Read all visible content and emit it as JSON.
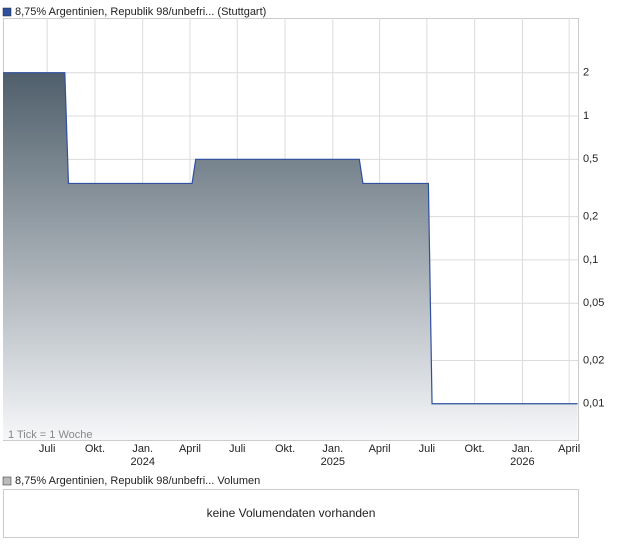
{
  "chart_data": {
    "type": "area",
    "title": "8,75% Argentinien, Republik 98/unbefri... (Stuttgart)",
    "note": "1 Tick = 1 Woche",
    "x": [
      "2023-04-07",
      "2023-08-04",
      "2023-08-11",
      "2024-04-05",
      "2024-04-12",
      "2025-02-21",
      "2025-02-28",
      "2025-07-04",
      "2025-07-11",
      "2026-04-17"
    ],
    "series": [
      {
        "name": "8,75% Argentinien, Republik 98/unbefri... (Stuttgart)",
        "color": "#2f4f9f",
        "values": [
          2,
          2,
          0.34,
          0.34,
          0.5,
          0.5,
          0.34,
          0.34,
          0.01,
          0.01
        ]
      }
    ],
    "xlim": [
      "2023-04-07",
      "2026-04-18"
    ],
    "xticks": [
      {
        "value": "2023-07-01",
        "label": "Juli"
      },
      {
        "value": "2023-10-01",
        "label": "Okt."
      },
      {
        "value": "2024-01-01",
        "label": "Jan."
      },
      {
        "value": "2024-04-01",
        "label": "April"
      },
      {
        "value": "2024-07-01",
        "label": "Juli"
      },
      {
        "value": "2024-10-01",
        "label": "Okt."
      },
      {
        "value": "2025-01-01",
        "label": "Jan."
      },
      {
        "value": "2025-04-01",
        "label": "April"
      },
      {
        "value": "2025-07-01",
        "label": "Juli"
      },
      {
        "value": "2025-10-01",
        "label": "Okt."
      },
      {
        "value": "2026-01-01",
        "label": "Jan."
      },
      {
        "value": "2026-04-01",
        "label": "April"
      }
    ],
    "year_labels": [
      {
        "value": "2024-01-01",
        "label": "2024"
      },
      {
        "value": "2025-01-01",
        "label": "2025"
      },
      {
        "value": "2026-01-01",
        "label": "2026"
      }
    ],
    "ylim": [
      0.0056,
      4.8
    ],
    "log_y": true,
    "grid": true,
    "yticks": [
      2,
      1,
      {
        "value": 0.5,
        "label": "0,5"
      },
      {
        "value": 0.2,
        "label": "0,2"
      },
      {
        "value": 0.1,
        "label": "0,1"
      },
      {
        "value": 0.05,
        "label": "0,05"
      },
      {
        "value": 0.02,
        "label": "0,02"
      },
      {
        "value": 0.01,
        "label": "0,01"
      }
    ]
  },
  "volume_panel": {
    "legend": "8,75% Argentinien, Republik 98/unbefri... Volumen",
    "message": "keine Volumendaten vorhanden"
  }
}
